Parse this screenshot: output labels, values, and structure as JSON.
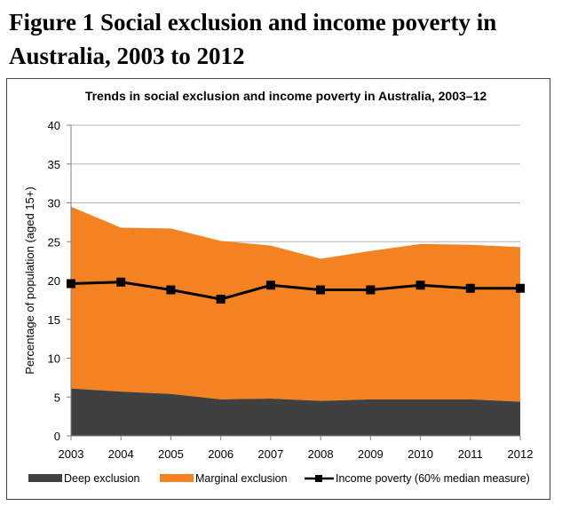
{
  "figure_title": "Figure 1 Social exclusion and income poverty in Australia, 2003 to 2012",
  "chart_data": {
    "type": "area",
    "title": "Trends in social exclusion and income poverty in Australia, 2003–12",
    "xlabel": "",
    "ylabel": "Percentage of population (aged 15+)",
    "ylim": [
      0,
      40
    ],
    "yticks": [
      "0",
      "5",
      "10",
      "15",
      "20",
      "25",
      "30",
      "35",
      "40"
    ],
    "categories": [
      "2003",
      "2004",
      "2005",
      "2006",
      "2007",
      "2008",
      "2009",
      "2010",
      "2011",
      "2012"
    ],
    "grid": true,
    "legend_position": "bottom",
    "series": [
      {
        "name": "Deep exclusion",
        "kind": "area",
        "color": "#404040",
        "values": [
          6.1,
          5.7,
          5.4,
          4.7,
          4.8,
          4.5,
          4.7,
          4.7,
          4.7,
          4.4
        ]
      },
      {
        "name": "Marginal exclusion",
        "kind": "area",
        "color": "#f58220",
        "values": [
          23.4,
          21.1,
          21.3,
          20.4,
          19.7,
          18.3,
          19.1,
          20.0,
          19.9,
          19.9
        ]
      },
      {
        "name": "Income poverty (60% median measure)",
        "kind": "line",
        "color": "#000000",
        "marker": "square",
        "values": [
          19.6,
          19.8,
          18.8,
          17.6,
          19.4,
          18.8,
          18.8,
          19.4,
          19.0,
          19.0
        ]
      }
    ]
  }
}
